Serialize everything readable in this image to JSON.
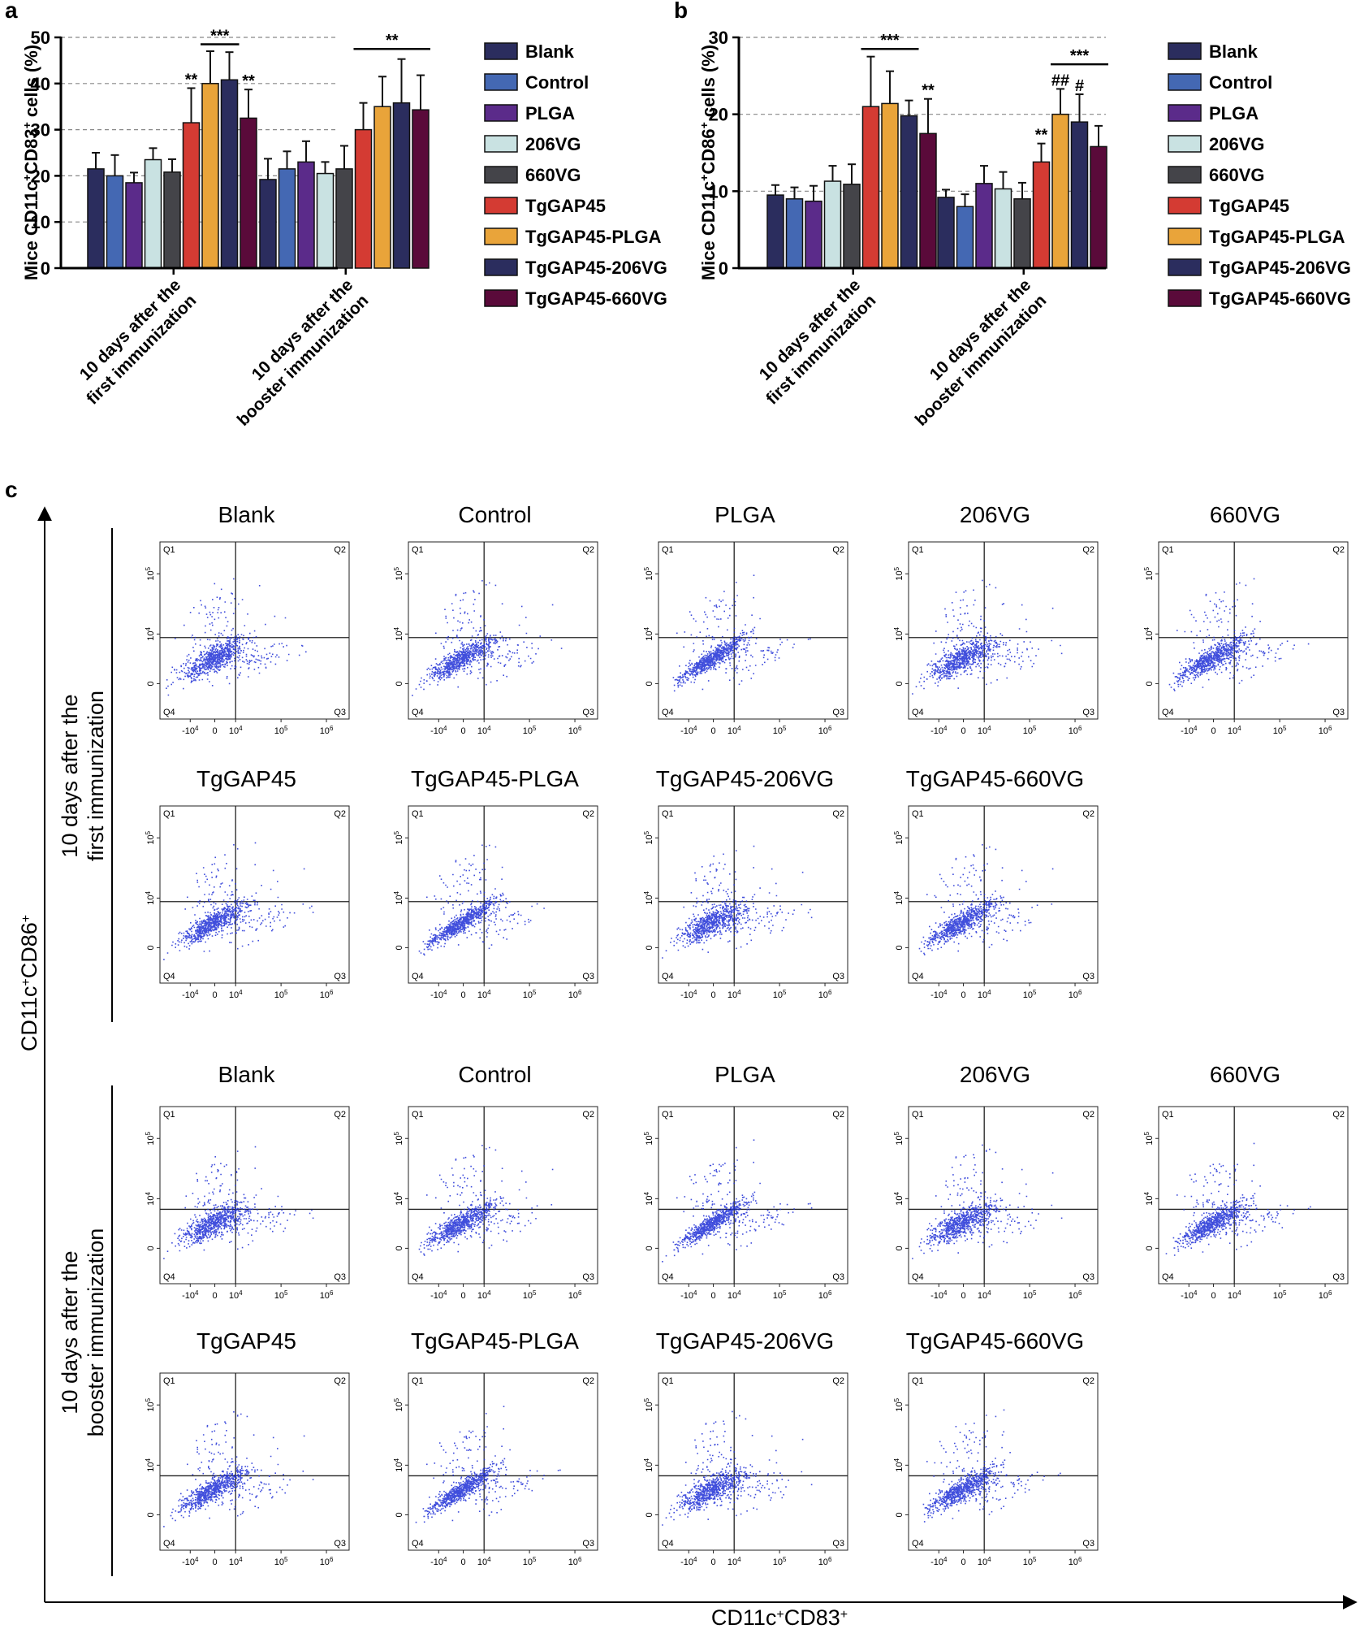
{
  "panels": {
    "a": "a",
    "b": "b",
    "c": "c"
  },
  "palette": [
    "#2b2d5e",
    "#4468b3",
    "#5b2b8a",
    "#c9e2e2",
    "#444449",
    "#d43b33",
    "#e9a43a",
    "#2b2d5e",
    "#5a0a3a"
  ],
  "chart_data": [
    {
      "id": "a",
      "type": "bar",
      "ylabel_parts": [
        "Mice CD11c",
        "+",
        "CD83",
        "+",
        " cells (%)"
      ],
      "ylim": [
        0,
        50
      ],
      "yticks": [
        "0",
        "10",
        "20",
        "30",
        "40",
        "50"
      ],
      "categories": [
        "10 days after the first immunization",
        "10 days after the booster immunization"
      ],
      "category_lines": [
        [
          "10 days after the",
          "first immunization"
        ],
        [
          "10 days after the",
          "booster immunization"
        ]
      ],
      "series": [
        {
          "name": "Blank",
          "values": [
            21.5,
            19.2
          ],
          "errors": [
            3.5,
            4.5
          ]
        },
        {
          "name": "Control",
          "values": [
            20.0,
            21.5
          ],
          "errors": [
            4.5,
            3.8
          ]
        },
        {
          "name": "PLGA",
          "values": [
            18.5,
            23.0
          ],
          "errors": [
            2.2,
            4.5
          ]
        },
        {
          "name": "206VG",
          "values": [
            23.5,
            20.5
          ],
          "errors": [
            2.5,
            2.5
          ]
        },
        {
          "name": "660VG",
          "values": [
            20.8,
            21.5
          ],
          "errors": [
            2.8,
            5.0
          ]
        },
        {
          "name": "TgGAP45",
          "values": [
            31.5,
            30.0
          ],
          "errors": [
            7.5,
            5.8
          ]
        },
        {
          "name": "TgGAP45-PLGA",
          "values": [
            40.0,
            35.0
          ],
          "errors": [
            7.0,
            6.5
          ]
        },
        {
          "name": "TgGAP45-206VG",
          "values": [
            40.8,
            35.8
          ],
          "errors": [
            6.0,
            9.5
          ]
        },
        {
          "name": "TgGAP45-660VG",
          "values": [
            32.5,
            34.3
          ],
          "errors": [
            6.2,
            7.5
          ]
        }
      ],
      "annotations": [
        {
          "text": "**",
          "group": 0,
          "bar": 5
        },
        {
          "text": "**",
          "group": 0,
          "bar": 8
        },
        {
          "text": "***",
          "group": 0,
          "from": 6,
          "to": 7,
          "line": true,
          "y": 48.5
        },
        {
          "text": "**",
          "group": 1,
          "from": 5,
          "to": 8,
          "line": true,
          "y": 47.5
        }
      ],
      "legend": "right"
    },
    {
      "id": "b",
      "type": "bar",
      "ylabel_parts": [
        "Mice CD11c",
        "+",
        "CD86",
        "+",
        " cells (%)"
      ],
      "ylim": [
        0,
        30
      ],
      "yticks": [
        "0",
        "10",
        "20",
        "30"
      ],
      "categories": [
        "10 days after the first immunization",
        "10 days after the booster immunization"
      ],
      "category_lines": [
        [
          "10 days after the",
          "first immunization"
        ],
        [
          "10 days after the",
          "booster immunization"
        ]
      ],
      "series": [
        {
          "name": "Blank",
          "values": [
            9.5,
            9.2
          ],
          "errors": [
            1.3,
            1.0
          ]
        },
        {
          "name": "Control",
          "values": [
            9.0,
            8.0
          ],
          "errors": [
            1.5,
            1.6
          ]
        },
        {
          "name": "PLGA",
          "values": [
            8.7,
            11.0
          ],
          "errors": [
            2.0,
            2.3
          ]
        },
        {
          "name": "206VG",
          "values": [
            11.3,
            10.3
          ],
          "errors": [
            2.0,
            2.2
          ]
        },
        {
          "name": "660VG",
          "values": [
            10.9,
            9.0
          ],
          "errors": [
            2.6,
            2.1
          ]
        },
        {
          "name": "TgGAP45",
          "values": [
            21.0,
            13.8
          ],
          "errors": [
            6.5,
            2.4
          ]
        },
        {
          "name": "TgGAP45-PLGA",
          "values": [
            21.4,
            20.0
          ],
          "errors": [
            4.2,
            3.3
          ]
        },
        {
          "name": "TgGAP45-206VG",
          "values": [
            19.8,
            19.0
          ],
          "errors": [
            2.0,
            3.6
          ]
        },
        {
          "name": "TgGAP45-660VG",
          "values": [
            17.5,
            15.8
          ],
          "errors": [
            4.5,
            2.7
          ]
        }
      ],
      "annotations": [
        {
          "text": "***",
          "group": 0,
          "from": 5,
          "to": 7,
          "line": true,
          "y": 28.5
        },
        {
          "text": "**",
          "group": 0,
          "bar": 8
        },
        {
          "text": "**",
          "group": 1,
          "bar": 5
        },
        {
          "text": "##",
          "group": 1,
          "bar": 6
        },
        {
          "text": "#",
          "group": 1,
          "bar": 7
        },
        {
          "text": "***",
          "group": 1,
          "from": 6,
          "to": 8,
          "line": true,
          "y": 26.5
        }
      ],
      "legend": "right"
    },
    {
      "id": "c",
      "type": "scatter",
      "xlabel_parts": [
        "CD11c",
        "+",
        "CD83",
        "+"
      ],
      "ylabel_parts": [
        "CD11c",
        "+",
        "CD86",
        "+"
      ],
      "x_ticks": [
        "-10",
        "0",
        "10",
        "10",
        "10"
      ],
      "x_tick_exps": [
        "4",
        "",
        "4",
        "5",
        "6"
      ],
      "y_ticks": [
        "0",
        "10",
        "10"
      ],
      "y_tick_exps": [
        "",
        "4",
        "5"
      ],
      "quadrants": [
        "Q1",
        "Q2",
        "Q3",
        "Q4"
      ],
      "sections": [
        {
          "label": [
            "10 days after the",
            "first immunization"
          ],
          "rows": [
            [
              "Blank",
              "Control",
              "PLGA",
              "206VG",
              "660VG"
            ],
            [
              "TgGAP45",
              "TgGAP45-PLGA",
              "TgGAP45-206VG",
              "TgGAP45-660VG"
            ]
          ]
        },
        {
          "label": [
            "10 days after the",
            "booster immunization"
          ],
          "rows": [
            [
              "Blank",
              "Control",
              "PLGA",
              "206VG",
              "660VG"
            ],
            [
              "TgGAP45",
              "TgGAP45-PLGA",
              "TgGAP45-206VG",
              "TgGAP45-660VG"
            ]
          ]
        }
      ]
    }
  ]
}
